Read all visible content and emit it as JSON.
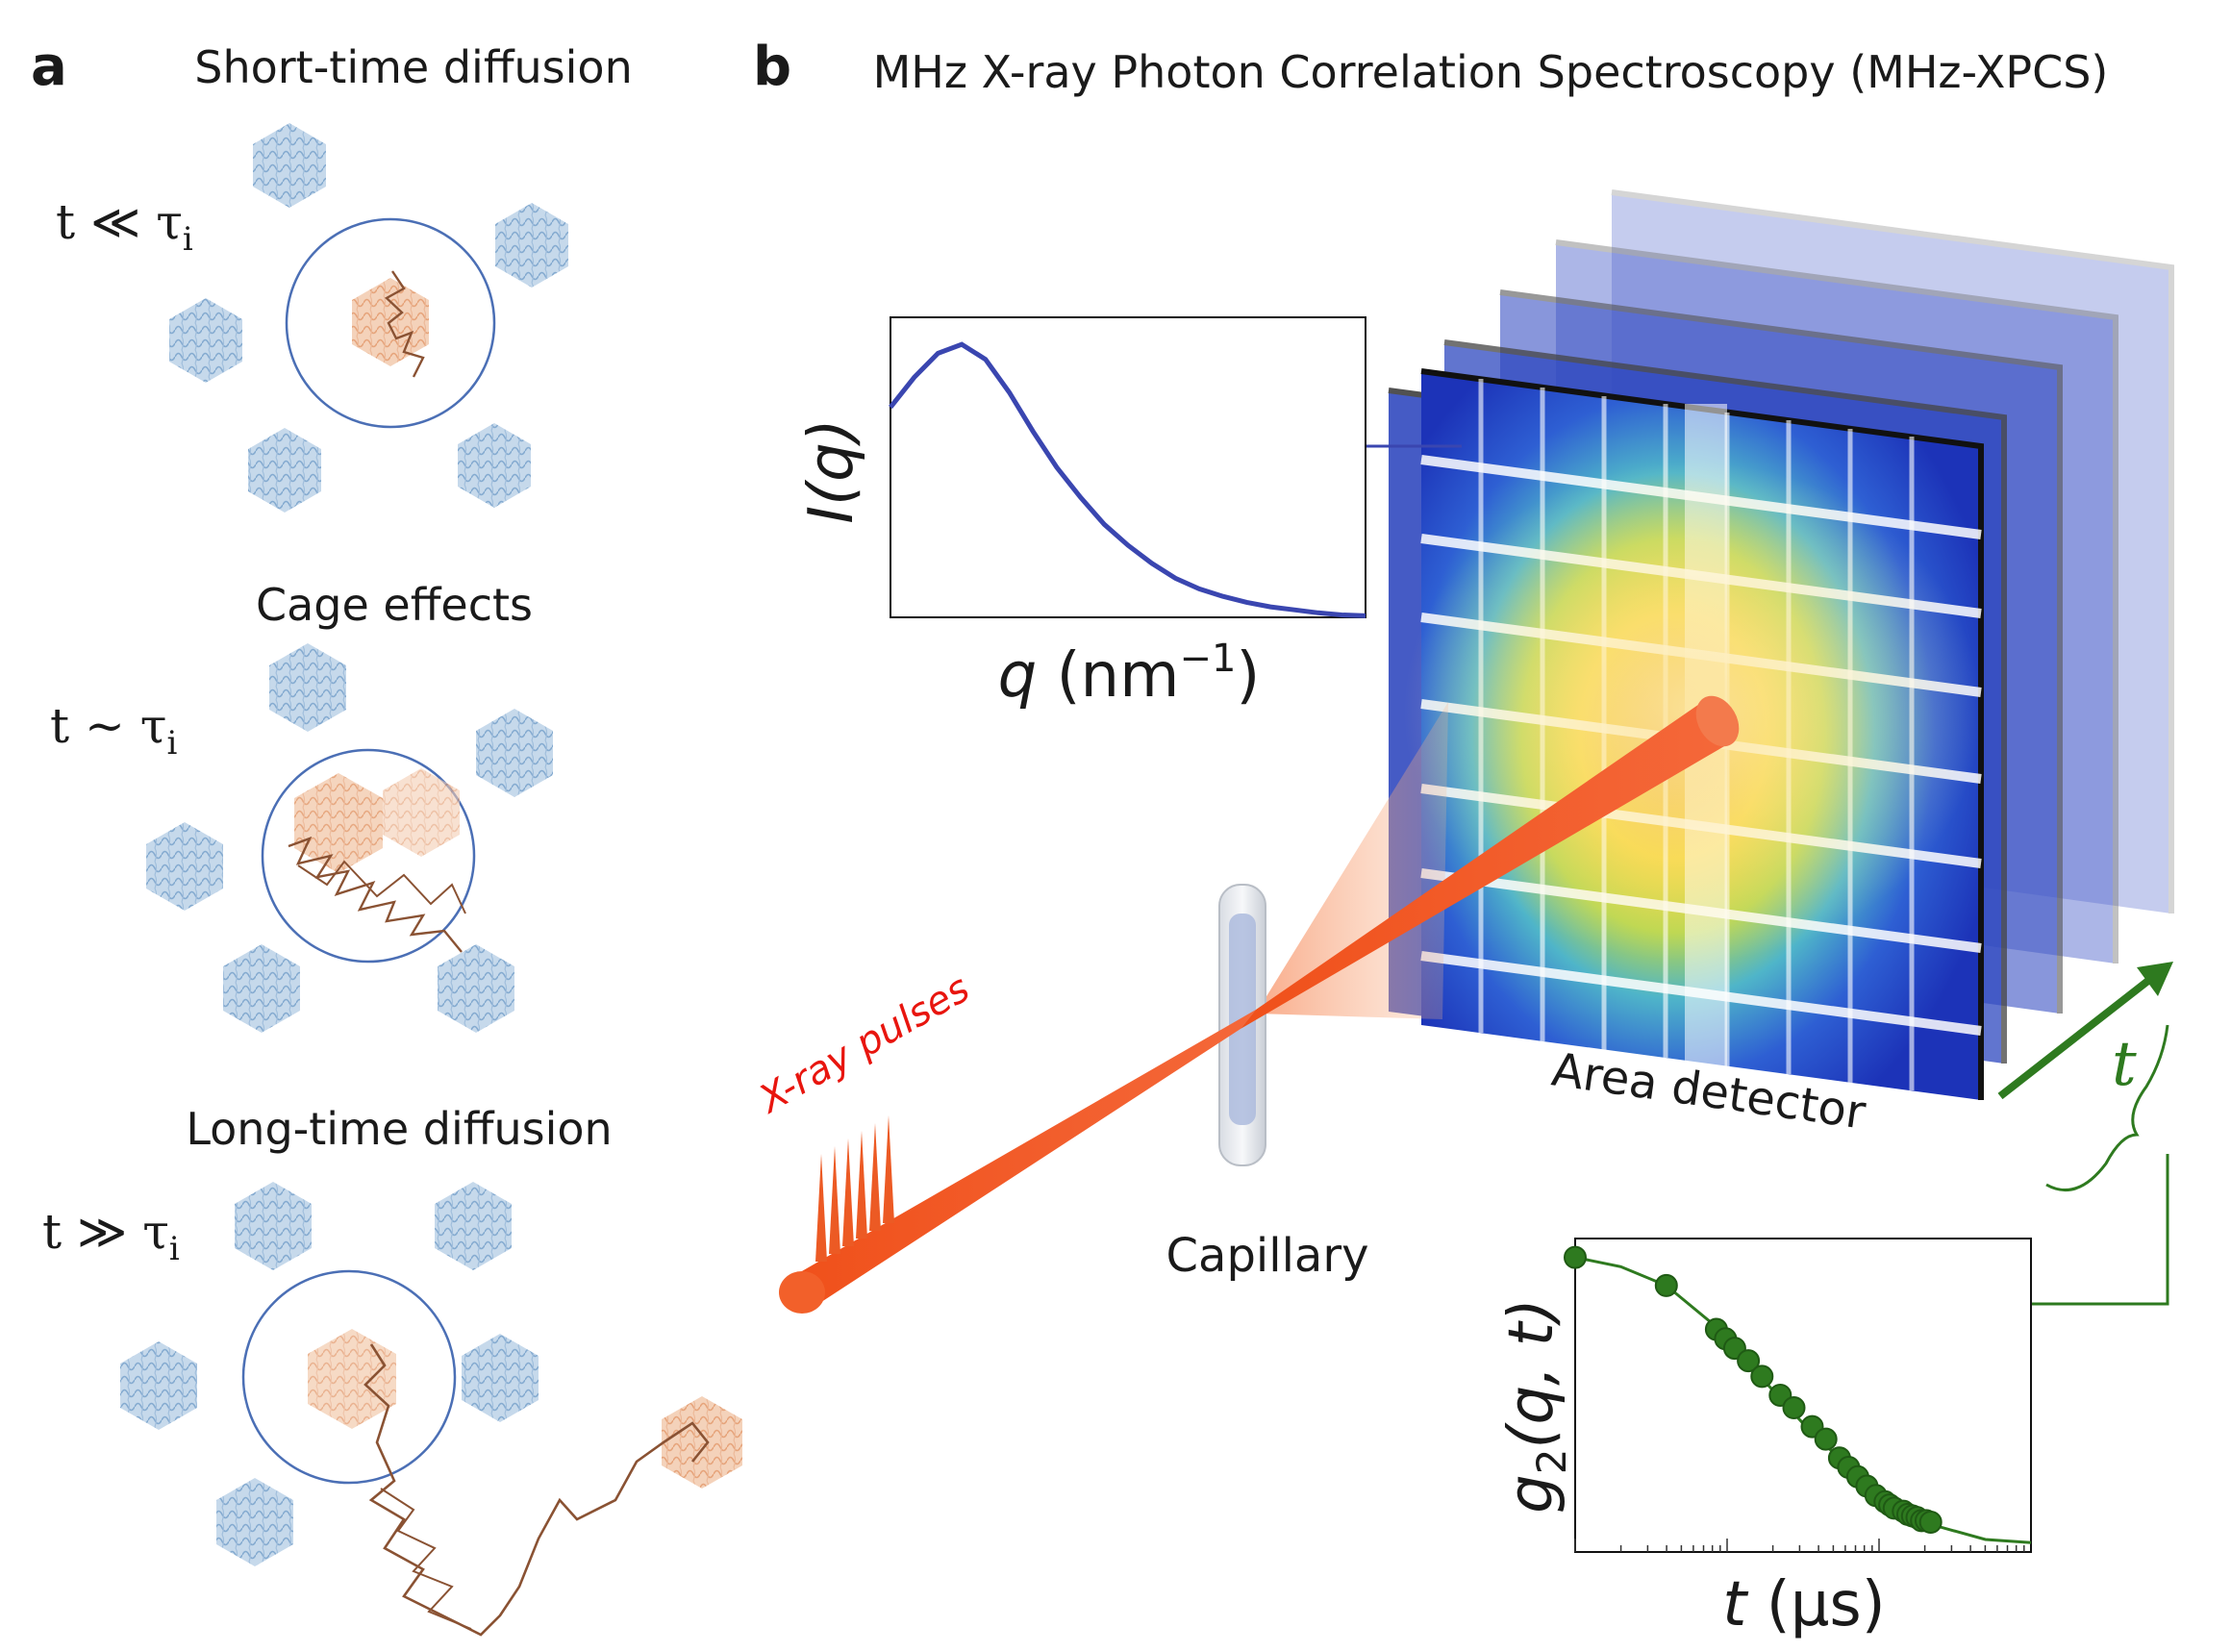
{
  "panel_a": {
    "letter": "a",
    "sections": [
      {
        "title": "Short-time diffusion",
        "condition": "t ≪ τ",
        "sub": "i"
      },
      {
        "title": "Cage effects",
        "condition": "t ~ τ",
        "sub": "i"
      },
      {
        "title": "Long-time diffusion",
        "condition": "t ≫ τ",
        "sub": "i"
      }
    ]
  },
  "panel_b": {
    "letter": "b",
    "title": "MHz X-ray Photon Correlation Spectroscopy (MHz-XPCS)",
    "xray_label": "X-ray pulses",
    "capillary_label": "Capillary",
    "detector_label": "Area detector",
    "time_axis_label": "t",
    "saxs_plot": {
      "ylabel": "I(q)",
      "xlabel_q": "q",
      "xlabel_unit": "(nm",
      "xlabel_exp": "−1",
      "xlabel_close": ")"
    },
    "g2_plot": {
      "ylabel_main": "g",
      "ylabel_sub": "2",
      "ylabel_args": "(q, t)",
      "xlabel_t": "t",
      "xlabel_unit": "(µs)"
    }
  },
  "colors": {
    "protein_blue": "#7ea7cf",
    "protein_orange": "#e9a77e",
    "trajectory": "#8a5233",
    "beam": "#f0541e",
    "green": "#2e7a1f",
    "plot_blue": "#3a46b0",
    "cage_circle": "#4b6fb5"
  },
  "chart_data": [
    {
      "type": "line",
      "title": "",
      "xlabel": "q (nm−1)",
      "ylabel": "I(q)",
      "x": [
        0.0,
        0.05,
        0.1,
        0.15,
        0.2,
        0.25,
        0.3,
        0.35,
        0.4,
        0.45,
        0.5,
        0.55,
        0.6,
        0.65,
        0.7,
        0.75,
        0.8,
        0.85,
        0.9,
        0.95,
        1.0
      ],
      "y": [
        0.7,
        0.8,
        0.88,
        0.91,
        0.86,
        0.75,
        0.62,
        0.5,
        0.4,
        0.31,
        0.24,
        0.18,
        0.13,
        0.095,
        0.07,
        0.05,
        0.035,
        0.025,
        0.015,
        0.008,
        0.005
      ],
      "xlim": [
        0,
        1
      ],
      "ylim": [
        0,
        1
      ]
    },
    {
      "type": "scatter",
      "title": "",
      "xlabel": "t (µs)",
      "ylabel": "g2(q, t)",
      "x": [
        0.0,
        0.2,
        0.31,
        0.33,
        0.35,
        0.38,
        0.41,
        0.45,
        0.48,
        0.52,
        0.55,
        0.58,
        0.6,
        0.62,
        0.64,
        0.66,
        0.68,
        0.69,
        0.7,
        0.72,
        0.73,
        0.74,
        0.75,
        0.76,
        0.77,
        0.78
      ],
      "y": [
        0.94,
        0.85,
        0.71,
        0.68,
        0.65,
        0.61,
        0.56,
        0.5,
        0.46,
        0.4,
        0.36,
        0.3,
        0.27,
        0.24,
        0.21,
        0.18,
        0.16,
        0.15,
        0.14,
        0.13,
        0.12,
        0.115,
        0.11,
        0.1,
        0.1,
        0.095
      ],
      "fit_x": [
        0.0,
        0.1,
        0.2,
        0.3,
        0.4,
        0.5,
        0.6,
        0.7,
        0.8,
        0.9,
        1.0
      ],
      "fit_y": [
        0.94,
        0.91,
        0.85,
        0.73,
        0.57,
        0.41,
        0.27,
        0.15,
        0.08,
        0.04,
        0.03
      ],
      "xscale": "log",
      "xlim": [
        0,
        1
      ],
      "ylim": [
        0,
        1
      ]
    }
  ]
}
